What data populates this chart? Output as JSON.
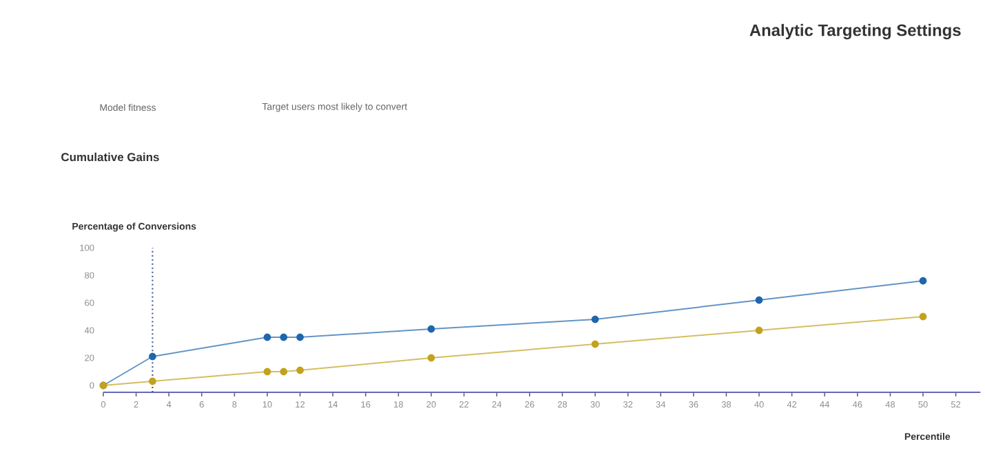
{
  "chart_data": {
    "type": "line",
    "title": "Cumulative Gains",
    "annotations": [
      "Analytic Targeting Settings",
      "Model fitness",
      "Target users most likely to convert"
    ],
    "xlabel": "Percentile",
    "ylabel": "Percentage of Conversions",
    "x": [
      0,
      3,
      10,
      11,
      12,
      20,
      30,
      40,
      50
    ],
    "series": [
      {
        "color": "#1f66ad",
        "values": [
          0,
          21,
          35,
          35,
          35,
          41,
          48,
          62,
          76
        ]
      },
      {
        "color": "#c2a21e",
        "values": [
          0,
          3,
          10,
          10,
          11,
          20,
          30,
          40,
          50
        ]
      }
    ],
    "xlim": [
      0,
      53.5
    ],
    "xticks": [
      0,
      2,
      4,
      6,
      8,
      10,
      12,
      14,
      16,
      18,
      20,
      22,
      24,
      26,
      28,
      30,
      32,
      34,
      36,
      38,
      40,
      42,
      44,
      46,
      48,
      50,
      52
    ],
    "ylim": [
      -5,
      100
    ],
    "yticks": [
      0,
      20,
      40,
      60,
      80,
      100
    ],
    "ref_lines": [
      {
        "axis": "x",
        "value": 3,
        "color": "#3a4a8a",
        "line_style": "dotted"
      }
    ],
    "marker": "circle",
    "line_style": "solid",
    "grid": false
  }
}
